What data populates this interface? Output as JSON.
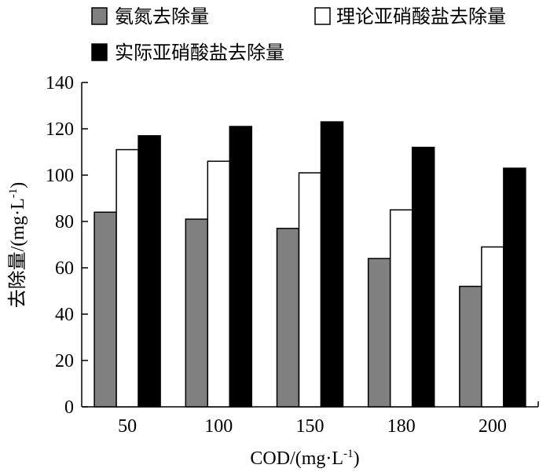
{
  "chart_data": {
    "type": "bar",
    "categories": [
      "50",
      "100",
      "150",
      "180",
      "200"
    ],
    "series": [
      {
        "name": "氨氮去除量",
        "values": [
          84,
          81,
          77,
          64,
          52
        ],
        "color": "#808080"
      },
      {
        "name": "理论亚硝酸盐去除量",
        "values": [
          111,
          106,
          101,
          85,
          69
        ],
        "color": "#ffffff"
      },
      {
        "name": "实际亚硝酸盐去除量",
        "values": [
          117,
          121,
          123,
          112,
          103
        ],
        "color": "#000000"
      }
    ],
    "xlabel_main": "COD/(mg·L",
    "xlabel_sup": "-1",
    "xlabel_end": ")",
    "ylabel_main": "去除量/(mg·L",
    "ylabel_sup": "-1",
    "ylabel_end": ")",
    "ylim": [
      0,
      140
    ],
    "yticks": [
      0,
      20,
      40,
      60,
      80,
      100,
      120,
      140
    ],
    "legend_position": "top",
    "grid": false
  }
}
